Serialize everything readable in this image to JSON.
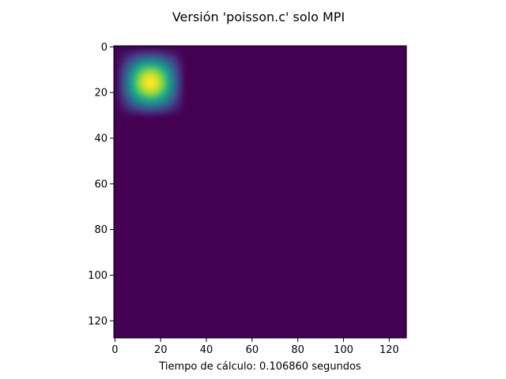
{
  "chart_data": {
    "type": "heatmap",
    "title": "Versión 'poisson.c' solo MPI",
    "xlabel": "Tiempo de cálculo: 0.106860 segundos",
    "ylabel": "",
    "x_extent": [
      0,
      128
    ],
    "y_extent": [
      0,
      128
    ],
    "xticks": [
      0,
      20,
      40,
      60,
      80,
      100,
      120
    ],
    "yticks": [
      0,
      20,
      40,
      60,
      80,
      100,
      120
    ],
    "y_inverted": true,
    "colormap": "viridis",
    "grid_size": 128,
    "hot_region": {
      "x_range": [
        0,
        31
      ],
      "y_range": [
        0,
        31
      ],
      "peak_center": [
        15.5,
        15.5
      ],
      "peak_value": 1.0
    },
    "background_value": 0.0,
    "grid": false
  },
  "colors": {
    "background": "#440154",
    "peak": "#fde725",
    "axis": "#000000"
  }
}
